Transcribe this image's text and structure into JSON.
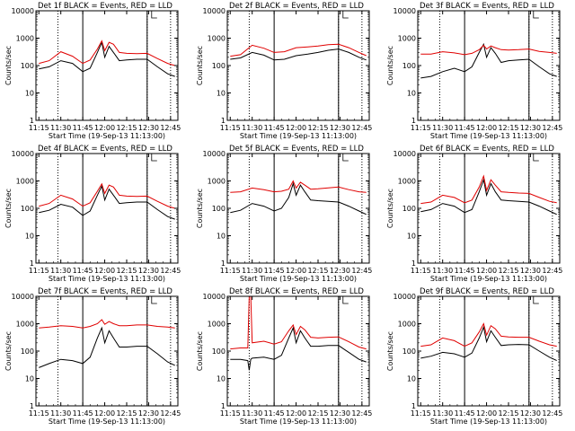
{
  "figure": {
    "ylabel": "Counts/sec",
    "xlabel": "Start Time (19-Sep-13 11:13:00)",
    "x_ticks": [
      "11:15",
      "11:30",
      "11:45",
      "12:00",
      "12:15",
      "12:30",
      "12:45"
    ],
    "y_ticks": [
      "1",
      "10",
      "100",
      "1000",
      "10000"
    ],
    "colors": {
      "events": "#000000",
      "lld": "#e00000",
      "background": "#ffffff"
    }
  },
  "chart_data": [
    {
      "type": "line",
      "title": "Det 1f BLACK = Events, RED = LLD",
      "xlabel": "Start Time (19-Sep-13 11:13:00)",
      "ylabel": "Counts/sec",
      "y_scale": "log",
      "ylim": [
        1,
        10000
      ],
      "xlim": [
        "11:13",
        "12:50"
      ],
      "vlines": {
        "dotted": [
          "11:28",
          "12:29",
          "12:45"
        ],
        "solid": [
          "11:45",
          "12:29"
        ]
      },
      "x": [
        "11:15",
        "11:22",
        "11:30",
        "11:38",
        "11:45",
        "11:50",
        "11:55",
        "11:58",
        "12:00",
        "12:03",
        "12:06",
        "12:10",
        "12:15",
        "12:22",
        "12:29",
        "12:36",
        "12:43",
        "12:48"
      ],
      "series": [
        {
          "name": "BLACK = Events",
          "color": "#000000",
          "values": [
            75,
            90,
            150,
            120,
            60,
            80,
            300,
            700,
            200,
            500,
            300,
            150,
            160,
            170,
            170,
            90,
            50,
            40
          ]
        },
        {
          "name": "RED = LLD",
          "color": "#e00000",
          "values": [
            120,
            150,
            320,
            220,
            120,
            160,
            400,
            800,
            350,
            700,
            600,
            300,
            280,
            270,
            280,
            180,
            120,
            100
          ]
        }
      ]
    },
    {
      "type": "line",
      "title": "Det 2f BLACK = Events, RED = LLD",
      "xlabel": "Start Time (19-Sep-13 11:13:00)",
      "ylabel": "Counts/sec",
      "y_scale": "log",
      "ylim": [
        1,
        10000
      ],
      "xlim": [
        "11:13",
        "12:50"
      ],
      "vlines": {
        "dotted": [
          "11:28",
          "12:29",
          "12:45"
        ],
        "solid": [
          "11:45",
          "12:29"
        ]
      },
      "x": [
        "11:15",
        "11:22",
        "11:30",
        "11:38",
        "11:45",
        "11:52",
        "12:00",
        "12:08",
        "12:15",
        "12:22",
        "12:29",
        "12:36",
        "12:43",
        "12:48"
      ],
      "series": [
        {
          "name": "BLACK = Events",
          "color": "#000000",
          "values": [
            170,
            190,
            300,
            240,
            160,
            170,
            230,
            260,
            300,
            360,
            400,
            300,
            200,
            160
          ]
        },
        {
          "name": "RED = LLD",
          "color": "#e00000",
          "values": [
            220,
            250,
            550,
            430,
            300,
            320,
            450,
            480,
            520,
            580,
            600,
            450,
            300,
            230
          ]
        }
      ]
    },
    {
      "type": "line",
      "title": "Det 3f BLACK = Events, RED = LLD",
      "xlabel": "Start Time (19-Sep-13 11:13:00)",
      "ylabel": "Counts/sec",
      "y_scale": "log",
      "ylim": [
        1,
        10000
      ],
      "xlim": [
        "11:13",
        "12:50"
      ],
      "vlines": {
        "dotted": [
          "11:28",
          "12:29",
          "12:45"
        ],
        "solid": [
          "11:45",
          "12:29"
        ]
      },
      "x": [
        "11:15",
        "11:22",
        "11:30",
        "11:38",
        "11:45",
        "11:50",
        "11:55",
        "11:58",
        "12:00",
        "12:03",
        "12:06",
        "12:10",
        "12:15",
        "12:22",
        "12:29",
        "12:36",
        "12:43",
        "12:48"
      ],
      "series": [
        {
          "name": "BLACK = Events",
          "color": "#000000",
          "values": [
            35,
            40,
            60,
            80,
            60,
            90,
            300,
            600,
            200,
            450,
            280,
            130,
            150,
            160,
            170,
            90,
            50,
            40
          ]
        },
        {
          "name": "RED = LLD",
          "color": "#e00000",
          "values": [
            260,
            260,
            320,
            290,
            250,
            280,
            380,
            550,
            400,
            520,
            450,
            380,
            370,
            380,
            400,
            330,
            300,
            280
          ]
        }
      ]
    },
    {
      "type": "line",
      "title": "Det 4f BLACK = Events, RED = LLD",
      "xlabel": "Start Time (19-Sep-13 11:13:00)",
      "ylabel": "Counts/sec",
      "y_scale": "log",
      "ylim": [
        1,
        10000
      ],
      "xlim": [
        "11:13",
        "12:50"
      ],
      "vlines": {
        "dotted": [
          "11:28",
          "12:29",
          "12:45"
        ],
        "solid": [
          "11:45",
          "12:29"
        ]
      },
      "x": [
        "11:15",
        "11:22",
        "11:30",
        "11:38",
        "11:45",
        "11:50",
        "11:55",
        "11:58",
        "12:00",
        "12:03",
        "12:06",
        "12:10",
        "12:15",
        "12:22",
        "12:29",
        "12:36",
        "12:43",
        "12:48"
      ],
      "series": [
        {
          "name": "BLACK = Events",
          "color": "#000000",
          "values": [
            70,
            85,
            140,
            110,
            55,
            80,
            300,
            650,
            200,
            500,
            300,
            150,
            160,
            170,
            170,
            90,
            50,
            40
          ]
        },
        {
          "name": "RED = LLD",
          "color": "#e00000",
          "values": [
            120,
            150,
            300,
            220,
            120,
            160,
            420,
            780,
            350,
            700,
            600,
            300,
            280,
            270,
            280,
            180,
            120,
            100
          ]
        }
      ]
    },
    {
      "type": "line",
      "title": "Det 5f BLACK = Events, RED = LLD",
      "xlabel": "Start Time (19-Sep-13 11:13:00)",
      "ylabel": "Counts/sec",
      "y_scale": "log",
      "ylim": [
        1,
        10000
      ],
      "xlim": [
        "11:13",
        "12:50"
      ],
      "vlines": {
        "dotted": [
          "11:28",
          "12:29",
          "12:45"
        ],
        "solid": [
          "11:45",
          "12:29"
        ]
      },
      "x": [
        "11:15",
        "11:22",
        "11:30",
        "11:38",
        "11:45",
        "11:50",
        "11:55",
        "11:58",
        "12:00",
        "12:03",
        "12:06",
        "12:10",
        "12:15",
        "12:22",
        "12:29",
        "12:36",
        "12:43",
        "12:48"
      ],
      "series": [
        {
          "name": "BLACK = Events",
          "color": "#000000",
          "values": [
            70,
            85,
            150,
            120,
            80,
            100,
            250,
            800,
            300,
            700,
            400,
            200,
            190,
            180,
            170,
            120,
            80,
            60
          ]
        },
        {
          "name": "RED = LLD",
          "color": "#e00000",
          "values": [
            380,
            400,
            550,
            480,
            400,
            420,
            500,
            1000,
            550,
            900,
            700,
            500,
            520,
            560,
            600,
            480,
            400,
            380
          ]
        }
      ]
    },
    {
      "type": "line",
      "title": "Det 6f BLACK = Events, RED = LLD",
      "xlabel": "Start Time (19-Sep-13 11:13:00)",
      "ylabel": "Counts/sec",
      "y_scale": "log",
      "ylim": [
        1,
        10000
      ],
      "xlim": [
        "11:13",
        "12:50"
      ],
      "vlines": {
        "dotted": [
          "11:28",
          "12:29",
          "12:45"
        ],
        "solid": [
          "11:45",
          "12:29"
        ]
      },
      "x": [
        "11:15",
        "11:22",
        "11:30",
        "11:38",
        "11:45",
        "11:50",
        "11:55",
        "11:58",
        "12:00",
        "12:03",
        "12:06",
        "12:10",
        "12:15",
        "12:22",
        "12:29",
        "12:36",
        "12:43",
        "12:48"
      ],
      "series": [
        {
          "name": "BLACK = Events",
          "color": "#000000",
          "values": [
            75,
            90,
            150,
            120,
            70,
            90,
            400,
            1100,
            300,
            800,
            400,
            200,
            190,
            180,
            170,
            120,
            80,
            60
          ]
        },
        {
          "name": "RED = LLD",
          "color": "#e00000",
          "values": [
            150,
            170,
            300,
            250,
            160,
            200,
            600,
            1500,
            450,
            1100,
            700,
            400,
            380,
            360,
            350,
            250,
            180,
            160
          ]
        }
      ]
    },
    {
      "type": "line",
      "title": "Det 7f BLACK = Events, RED = LLD",
      "xlabel": "Start Time (19-Sep-13 11:13:00)",
      "ylabel": "Counts/sec",
      "y_scale": "log",
      "ylim": [
        1,
        10000
      ],
      "xlim": [
        "11:13",
        "12:50"
      ],
      "vlines": {
        "dotted": [
          "11:28",
          "12:29",
          "12:45"
        ],
        "solid": [
          "11:45",
          "12:29"
        ]
      },
      "x": [
        "11:15",
        "11:22",
        "11:30",
        "11:38",
        "11:45",
        "11:50",
        "11:55",
        "11:58",
        "12:00",
        "12:03",
        "12:06",
        "12:10",
        "12:15",
        "12:22",
        "12:29",
        "12:36",
        "12:43",
        "12:48"
      ],
      "series": [
        {
          "name": "BLACK = Events",
          "color": "#000000",
          "values": [
            25,
            35,
            50,
            45,
            35,
            60,
            300,
            700,
            200,
            550,
            300,
            140,
            140,
            150,
            150,
            80,
            40,
            30
          ]
        },
        {
          "name": "RED = LLD",
          "color": "#e00000",
          "values": [
            700,
            750,
            850,
            800,
            700,
            800,
            1000,
            1400,
            950,
            1200,
            1000,
            850,
            850,
            900,
            900,
            800,
            750,
            700
          ]
        }
      ]
    },
    {
      "type": "line",
      "title": "Det 8f BLACK = Events, RED = LLD",
      "xlabel": "Start Time (19-Sep-13 11:13:00)",
      "ylabel": "Counts/sec",
      "y_scale": "log",
      "ylim": [
        1,
        10000
      ],
      "xlim": [
        "11:13",
        "12:50"
      ],
      "vlines": {
        "dotted": [
          "11:28",
          "12:29",
          "12:45"
        ],
        "solid": [
          "11:45",
          "12:29"
        ]
      },
      "x": [
        "11:15",
        "11:22",
        "11:27",
        "11:28",
        "11:29",
        "11:30",
        "11:38",
        "11:45",
        "11:50",
        "11:55",
        "11:58",
        "12:00",
        "12:03",
        "12:06",
        "12:10",
        "12:15",
        "12:22",
        "12:29",
        "12:36",
        "12:43",
        "12:48"
      ],
      "series": [
        {
          "name": "BLACK = Events",
          "color": "#000000",
          "values": [
            50,
            50,
            45,
            20,
            50,
            55,
            60,
            50,
            70,
            300,
            700,
            200,
            550,
            300,
            150,
            150,
            160,
            160,
            90,
            50,
            40
          ]
        },
        {
          "name": "RED = LLD",
          "color": "#e00000",
          "values": [
            120,
            130,
            130,
            10000,
            10000,
            200,
            230,
            180,
            220,
            550,
            900,
            400,
            800,
            600,
            320,
            300,
            320,
            330,
            220,
            140,
            120
          ]
        }
      ]
    },
    {
      "type": "line",
      "title": "Det 9f BLACK = Events, RED = LLD",
      "xlabel": "Start Time (19-Sep-13 11:13:00)",
      "ylabel": "Counts/sec",
      "y_scale": "log",
      "ylim": [
        1,
        10000
      ],
      "xlim": [
        "11:13",
        "12:50"
      ],
      "vlines": {
        "dotted": [
          "11:28",
          "12:29",
          "12:45"
        ],
        "solid": [
          "11:45",
          "12:29"
        ]
      },
      "x": [
        "11:15",
        "11:22",
        "11:30",
        "11:38",
        "11:45",
        "11:50",
        "11:55",
        "11:58",
        "12:00",
        "12:03",
        "12:06",
        "12:10",
        "12:15",
        "12:22",
        "12:29",
        "12:36",
        "12:43",
        "12:48"
      ],
      "series": [
        {
          "name": "BLACK = Events",
          "color": "#000000",
          "values": [
            55,
            65,
            90,
            80,
            60,
            85,
            300,
            750,
            220,
            550,
            320,
            160,
            170,
            175,
            170,
            100,
            60,
            45
          ]
        },
        {
          "name": "RED = LLD",
          "color": "#e00000",
          "values": [
            150,
            170,
            300,
            240,
            150,
            200,
            500,
            1000,
            380,
            850,
            650,
            350,
            330,
            320,
            320,
            230,
            170,
            150
          ]
        }
      ]
    }
  ]
}
